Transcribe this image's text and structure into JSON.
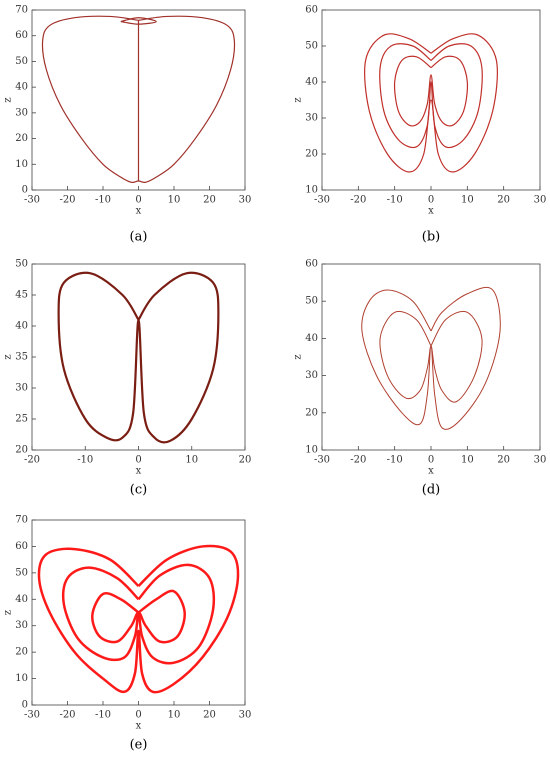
{
  "chart_data": [
    {
      "type": "line",
      "caption": "(a)",
      "xlabel": "x",
      "ylabel": "z",
      "xlim": [
        -30,
        30
      ],
      "ylim": [
        0,
        70
      ],
      "xticks": [
        -30,
        -20,
        -10,
        0,
        10,
        20,
        30
      ],
      "yticks": [
        0,
        10,
        20,
        30,
        40,
        50,
        60,
        70
      ],
      "line_width": 1.2,
      "series": [
        {
          "color": "#a0302a",
          "x": [
            0,
            -8,
            -18,
            -25,
            -27,
            -26,
            -22,
            -16,
            -10,
            -5,
            -2,
            0,
            2,
            5,
            10,
            16,
            22,
            26,
            27,
            25,
            18,
            8,
            0
          ],
          "values": [
            66,
            67.5,
            67,
            64,
            58,
            47,
            33,
            20,
            10,
            5,
            3,
            3.5,
            3,
            5,
            10,
            20,
            33,
            47,
            58,
            64,
            67,
            67.5,
            66
          ]
        },
        {
          "color": "#a0302a",
          "x": [
            0,
            0
          ],
          "values": [
            3.5,
            66
          ]
        },
        {
          "color": "#a0302a",
          "x": [
            -5,
            0,
            5,
            0,
            -5
          ],
          "values": [
            65.5,
            67,
            65.5,
            64.5,
            65.5
          ]
        }
      ]
    },
    {
      "type": "line",
      "caption": "(b)",
      "xlabel": "x",
      "ylabel": "z",
      "xlim": [
        -30,
        30
      ],
      "ylim": [
        10,
        60
      ],
      "xticks": [
        -30,
        -20,
        -10,
        0,
        10,
        20,
        30
      ],
      "yticks": [
        10,
        20,
        30,
        40,
        50,
        60
      ],
      "line_width": 1.2,
      "series": [
        {
          "color": "#c0302a",
          "x": [
            0,
            -6,
            -13,
            -18,
            -17,
            -12,
            -6,
            -2,
            0,
            2,
            6,
            12,
            17,
            18,
            13,
            6,
            0
          ],
          "values": [
            48,
            52,
            53,
            46,
            32,
            20,
            15,
            20,
            35,
            20,
            15,
            20,
            32,
            46,
            53,
            52,
            48
          ]
        },
        {
          "color": "#c0302a",
          "x": [
            0,
            -5,
            -11,
            -14,
            -13,
            -9,
            -4,
            -1,
            0,
            1,
            4,
            9,
            13,
            14,
            11,
            5,
            0
          ],
          "values": [
            46,
            50,
            50,
            44,
            32,
            24,
            22,
            28,
            40,
            28,
            22,
            24,
            32,
            44,
            50,
            50,
            46
          ]
        },
        {
          "color": "#c0302a",
          "x": [
            0,
            -4,
            -8,
            -10,
            -9,
            -6,
            -3,
            -1,
            0,
            1,
            3,
            6,
            9,
            10,
            8,
            4,
            0
          ],
          "values": [
            44,
            47,
            46,
            40,
            32,
            28,
            29,
            34,
            42,
            34,
            29,
            28,
            32,
            40,
            46,
            47,
            44
          ]
        }
      ]
    },
    {
      "type": "line",
      "caption": "(c)",
      "xlabel": "x",
      "ylabel": "z",
      "xlim": [
        -20,
        20
      ],
      "ylim": [
        20,
        50
      ],
      "xticks": [
        -20,
        -10,
        0,
        10,
        20
      ],
      "yticks": [
        20,
        25,
        30,
        35,
        40,
        45,
        50
      ],
      "line_width": 2.2,
      "series": [
        {
          "color": "#7a1e14",
          "x": [
            0,
            -3,
            -9,
            -14,
            -15,
            -14,
            -10,
            -6,
            -3,
            -1,
            0,
            1,
            3,
            6,
            10,
            14,
            15,
            14,
            9,
            3,
            0
          ],
          "values": [
            41,
            45,
            48.5,
            47,
            42,
            33,
            25,
            22,
            22,
            26,
            41,
            26,
            22,
            21.5,
            25,
            33,
            42,
            47,
            48.5,
            45,
            41
          ]
        }
      ]
    },
    {
      "type": "line",
      "caption": "(d)",
      "xlabel": "x",
      "ylabel": "z",
      "xlim": [
        -30,
        30
      ],
      "ylim": [
        10,
        60
      ],
      "xticks": [
        -30,
        -20,
        -10,
        0,
        10,
        20,
        30
      ],
      "yticks": [
        10,
        20,
        30,
        40,
        50,
        60
      ],
      "line_width": 1,
      "series": [
        {
          "color": "#b04030",
          "x": [
            0,
            -5,
            -12,
            -17,
            -19,
            -15,
            -8,
            -3,
            -1,
            0,
            1,
            3,
            8,
            15,
            19,
            17,
            10,
            3,
            0
          ],
          "values": [
            42,
            50,
            53,
            50,
            42,
            30,
            20,
            17,
            25,
            38,
            25,
            16,
            18,
            28,
            42,
            53,
            52,
            47,
            42
          ]
        },
        {
          "color": "#b04030",
          "x": [
            0,
            -4,
            -10,
            -14,
            -12,
            -7,
            -3,
            -1,
            0,
            1,
            3,
            7,
            12,
            14,
            10,
            4,
            0
          ],
          "values": [
            38,
            45,
            47,
            40,
            30,
            24,
            26,
            32,
            38,
            32,
            26,
            23,
            30,
            40,
            47,
            45,
            38
          ]
        }
      ]
    },
    {
      "type": "line",
      "caption": "(e)",
      "xlabel": "x",
      "ylabel": "z",
      "xlim": [
        -30,
        30
      ],
      "ylim": [
        0,
        70
      ],
      "xticks": [
        -30,
        -20,
        -10,
        0,
        10,
        20,
        30
      ],
      "yticks": [
        0,
        10,
        20,
        30,
        40,
        50,
        60,
        70
      ],
      "line_width": 2.5,
      "series": [
        {
          "color": "#ff1a1a",
          "x": [
            0,
            -8,
            -18,
            -26,
            -28,
            -25,
            -18,
            -10,
            -4,
            -1,
            0,
            1,
            4,
            10,
            18,
            25,
            28,
            26,
            18,
            8,
            0
          ],
          "values": [
            45,
            55,
            59,
            57,
            48,
            35,
            20,
            10,
            5,
            12,
            28,
            12,
            5,
            8,
            18,
            33,
            48,
            58,
            60,
            55,
            45
          ]
        },
        {
          "color": "#ff1a1a",
          "x": [
            0,
            -6,
            -14,
            -20,
            -21,
            -17,
            -10,
            -4,
            -1,
            0,
            1,
            4,
            10,
            17,
            21,
            20,
            14,
            6,
            0
          ],
          "values": [
            40,
            48,
            52,
            48,
            38,
            25,
            18,
            18,
            26,
            35,
            26,
            18,
            16,
            22,
            36,
            48,
            53,
            49,
            40
          ]
        },
        {
          "color": "#ff1a1a",
          "x": [
            0,
            -5,
            -10,
            -13,
            -11,
            -6,
            -2,
            0,
            2,
            6,
            11,
            13,
            10,
            5,
            0
          ],
          "values": [
            35,
            40,
            42,
            34,
            26,
            24,
            30,
            35,
            30,
            24,
            26,
            35,
            43,
            40,
            35
          ]
        }
      ]
    }
  ]
}
